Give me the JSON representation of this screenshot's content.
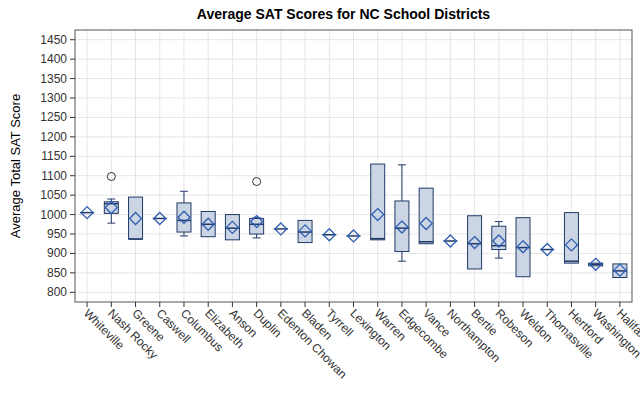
{
  "chart_data": {
    "type": "box",
    "title": "Average SAT Scores for NC School Districts",
    "y_label": "Average Total SAT Score",
    "categories": [
      "Whiteville",
      "Nash Rocky",
      "Greene",
      "Caswell",
      "Columbus",
      "Elizabeth",
      "Anson",
      "Duplin",
      "Edenton Chowan",
      "Bladen",
      "Tyrrell",
      "Lexington",
      "Warren",
      "Edgecombe",
      "Vance",
      "Northampton",
      "Bertie",
      "Robeson",
      "Weldon",
      "Thomasville",
      "Hertford",
      "Washington",
      "Halifax"
    ],
    "stats": [
      {
        "min": 1005,
        "q1": 1005,
        "median": 1005,
        "q3": 1005,
        "max": 1005,
        "mean": 1005,
        "outliers": []
      },
      {
        "min": 978,
        "q1": 1003,
        "median": 1028,
        "q3": 1033,
        "max": 1040,
        "mean": 1018,
        "outliers": [
          1098
        ]
      },
      {
        "min": 937,
        "q1": 937,
        "median": 937,
        "q3": 1045,
        "max": 1045,
        "mean": 990,
        "outliers": []
      },
      {
        "min": 990,
        "q1": 990,
        "median": 990,
        "q3": 990,
        "max": 990,
        "mean": 990,
        "outliers": []
      },
      {
        "min": 945,
        "q1": 955,
        "median": 985,
        "q3": 1030,
        "max": 1060,
        "mean": 993,
        "outliers": []
      },
      {
        "min": 943,
        "q1": 943,
        "median": 975,
        "q3": 1008,
        "max": 1008,
        "mean": 975,
        "outliers": []
      },
      {
        "min": 935,
        "q1": 935,
        "median": 965,
        "q3": 1000,
        "max": 1000,
        "mean": 967,
        "outliers": []
      },
      {
        "min": 940,
        "q1": 950,
        "median": 975,
        "q3": 990,
        "max": 992,
        "mean": 982,
        "outliers": [
          1085
        ]
      },
      {
        "min": 963,
        "q1": 963,
        "median": 963,
        "q3": 963,
        "max": 963,
        "mean": 963,
        "outliers": []
      },
      {
        "min": 928,
        "q1": 928,
        "median": 955,
        "q3": 985,
        "max": 985,
        "mean": 958,
        "outliers": []
      },
      {
        "min": 948,
        "q1": 948,
        "median": 948,
        "q3": 948,
        "max": 948,
        "mean": 948,
        "outliers": []
      },
      {
        "min": 945,
        "q1": 945,
        "median": 945,
        "q3": 945,
        "max": 945,
        "mean": 945,
        "outliers": []
      },
      {
        "min": 935,
        "q1": 935,
        "median": 938,
        "q3": 1130,
        "max": 1130,
        "mean": 1000,
        "outliers": []
      },
      {
        "min": 880,
        "q1": 905,
        "median": 965,
        "q3": 1035,
        "max": 1128,
        "mean": 968,
        "outliers": []
      },
      {
        "min": 925,
        "q1": 925,
        "median": 930,
        "q3": 1068,
        "max": 1068,
        "mean": 977,
        "outliers": []
      },
      {
        "min": 932,
        "q1": 932,
        "median": 932,
        "q3": 932,
        "max": 932,
        "mean": 932,
        "outliers": []
      },
      {
        "min": 860,
        "q1": 860,
        "median": 925,
        "q3": 997,
        "max": 997,
        "mean": 928,
        "outliers": []
      },
      {
        "min": 888,
        "q1": 910,
        "median": 920,
        "q3": 970,
        "max": 982,
        "mean": 932,
        "outliers": []
      },
      {
        "min": 840,
        "q1": 840,
        "median": 915,
        "q3": 992,
        "max": 992,
        "mean": 917,
        "outliers": []
      },
      {
        "min": 910,
        "q1": 910,
        "median": 910,
        "q3": 910,
        "max": 910,
        "mean": 910,
        "outliers": []
      },
      {
        "min": 875,
        "q1": 875,
        "median": 880,
        "q3": 1005,
        "max": 1005,
        "mean": 922,
        "outliers": []
      },
      {
        "min": 868,
        "q1": 868,
        "median": 872,
        "q3": 875,
        "max": 875,
        "mean": 872,
        "outliers": []
      },
      {
        "min": 838,
        "q1": 838,
        "median": 855,
        "q3": 873,
        "max": 873,
        "mean": 857,
        "outliers": []
      }
    ],
    "ylim": [
      775,
      1475
    ],
    "yticks": [
      800,
      850,
      900,
      950,
      1000,
      1050,
      1100,
      1150,
      1200,
      1250,
      1300,
      1350,
      1400,
      1450
    ],
    "grid": true
  }
}
